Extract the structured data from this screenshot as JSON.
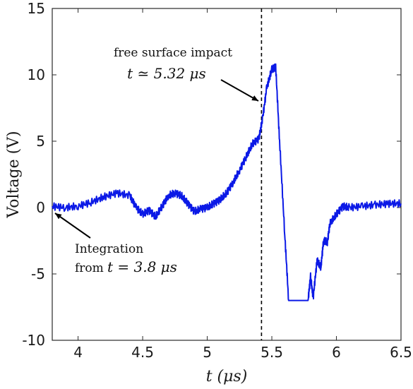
{
  "chart_data": {
    "type": "line",
    "title": "",
    "xlabel": "t (μs)",
    "ylabel": "Voltage (V)",
    "xlim": [
      3.8,
      6.5
    ],
    "ylim": [
      -10,
      15
    ],
    "xticks": [
      4,
      4.5,
      5,
      5.5,
      6,
      6.5
    ],
    "xtick_labels": [
      "4",
      "4.5",
      "5",
      "5.5",
      "6",
      "6.5"
    ],
    "yticks": [
      -10,
      -5,
      0,
      5,
      10,
      15
    ],
    "ytick_labels": [
      "-10",
      "-5",
      "0",
      "5",
      "10",
      "15"
    ],
    "grid": false,
    "series": [
      {
        "color": "#0b19e6",
        "x": [
          3.8,
          3.9,
          4.0,
          4.1,
          4.2,
          4.3,
          4.4,
          4.45,
          4.5,
          4.55,
          4.6,
          4.65,
          4.7,
          4.75,
          4.8,
          4.85,
          4.9,
          4.95,
          5.0,
          5.05,
          5.1,
          5.15,
          5.2,
          5.25,
          5.3,
          5.35,
          5.4,
          5.43,
          5.46,
          5.5,
          5.53,
          5.56,
          5.6,
          5.63,
          5.65,
          5.68,
          5.72,
          5.75,
          5.78,
          5.8,
          5.82,
          5.85,
          5.88,
          5.9,
          5.93,
          5.95,
          6.0,
          6.05,
          6.1,
          6.2,
          6.3,
          6.4,
          6.5
        ],
        "y": [
          0.1,
          0.0,
          0.1,
          0.4,
          0.8,
          1.1,
          0.9,
          0.0,
          -0.5,
          -0.2,
          -0.7,
          0.1,
          0.9,
          1.1,
          0.9,
          0.3,
          -0.3,
          -0.1,
          0.0,
          0.3,
          0.6,
          1.1,
          1.9,
          2.8,
          3.8,
          4.8,
          5.2,
          6.8,
          9.0,
          10.4,
          10.6,
          5.0,
          -2.0,
          -7.0,
          -7.0,
          -7.0,
          -7.0,
          -7.0,
          -7.0,
          -5.2,
          -6.8,
          -4.0,
          -4.5,
          -2.5,
          -2.6,
          -1.2,
          -0.5,
          0.1,
          0.0,
          0.1,
          0.2,
          0.3,
          0.3
        ]
      }
    ],
    "annotations": {
      "vline": {
        "x": 5.42,
        "style": "dashed"
      },
      "impact_label_line1": "free surface impact",
      "impact_label_line2": "t ≃ 5.32 μs",
      "integration_label_line1": "Integration",
      "integration_label_prefix": "from",
      "integration_label_math": "t = 3.8 μs"
    }
  }
}
